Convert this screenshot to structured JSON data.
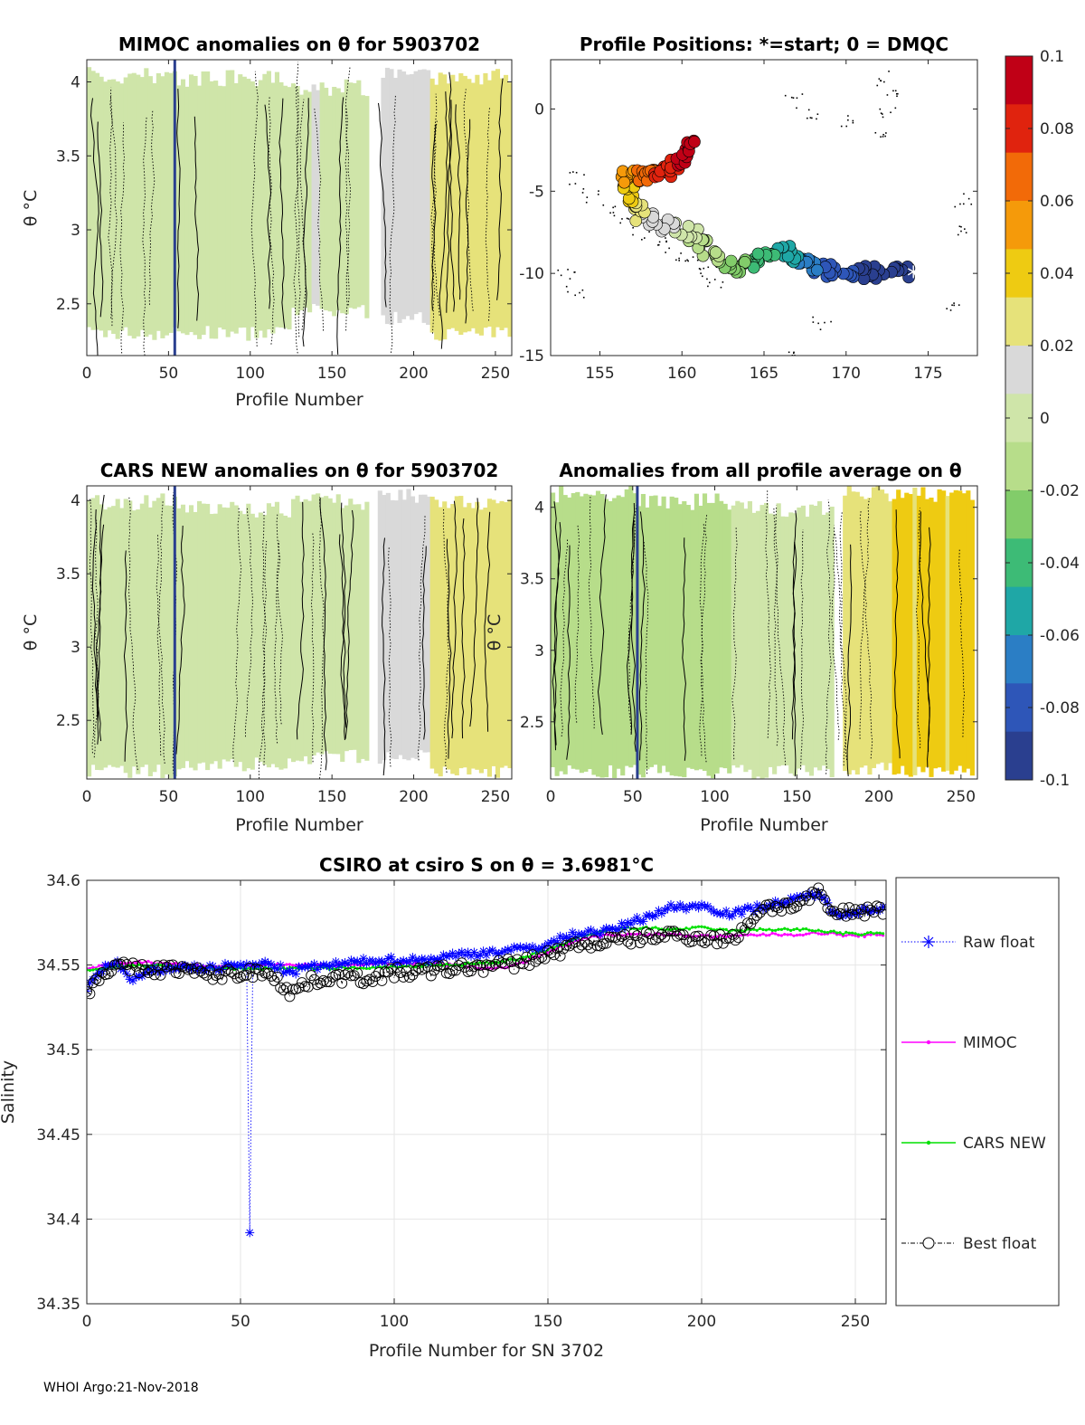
{
  "footer": "WHOI Argo:21-Nov-2018",
  "colorbar": {
    "ticks": [
      "0.1",
      "0.08",
      "0.06",
      "0.04",
      "0.02",
      "0",
      "-0.02",
      "-0.04",
      "-0.06",
      "-0.08",
      "-0.1"
    ],
    "colors": [
      "#c00016",
      "#e0230e",
      "#f26a08",
      "#f59a0a",
      "#eecb12",
      "#e6e27a",
      "#d9d9d9",
      "#cfe5a9",
      "#b7dd8a",
      "#82cc6a",
      "#3dbb76",
      "#1fa7a6",
      "#2b7ec5",
      "#2e56b8",
      "#2a3f8f"
    ]
  },
  "chart_data": [
    {
      "id": "mimoc-anom",
      "type": "heatmap",
      "title": "MIMOC anomalies on θ  for 5903702",
      "xlabel": "Profile Number",
      "ylabel": "θ °C",
      "xlim": [
        0,
        260
      ],
      "ylim": [
        2.15,
        4.15
      ],
      "xticks": [
        "0",
        "50",
        "100",
        "150",
        "200",
        "250"
      ],
      "yticks": [
        "4",
        "3.5",
        "3",
        "2.5"
      ],
      "colorbar_range": [
        -0.1,
        0.1
      ],
      "blocks": [
        {
          "x0": 0,
          "x1": 55,
          "ymin": 2.25,
          "ymax": 4.1,
          "anomaly": 0.0
        },
        {
          "x0": 55,
          "x1": 125,
          "ymin": 2.25,
          "ymax": 4.08,
          "anomaly": 0.002
        },
        {
          "x0": 125,
          "x1": 172,
          "ymin": 2.4,
          "ymax": 4.02,
          "anomaly": 0.005
        },
        {
          "x0": 180,
          "x1": 210,
          "ymin": 2.35,
          "ymax": 4.1,
          "anomaly": 0.018
        },
        {
          "x0": 210,
          "x1": 258,
          "ymin": 2.25,
          "ymax": 4.1,
          "anomaly": 0.025
        }
      ]
    },
    {
      "id": "profile-positions",
      "type": "scatter",
      "title": "Profile Positions: *=start; 0 = DMQC",
      "xlim": [
        152,
        178
      ],
      "ylim": [
        -15,
        3
      ],
      "xticks": [
        "155",
        "160",
        "165",
        "170",
        "175"
      ],
      "yticks": [
        "0",
        "-5",
        "-10",
        "-15"
      ],
      "start": {
        "lon": 174.1,
        "lat": -9.9
      },
      "track_segments": [
        {
          "lon0": 174.0,
          "lat0": -10.0,
          "lon1": 169.0,
          "lat1": -9.9,
          "anomaly_start": -0.1,
          "anomaly_end": -0.08,
          "n": 30
        },
        {
          "lon0": 169.0,
          "lat0": -9.9,
          "lon1": 166.0,
          "lat1": -8.6,
          "anomaly_start": -0.08,
          "anomaly_end": -0.05,
          "n": 30
        },
        {
          "lon0": 166.0,
          "lat0": -8.6,
          "lon1": 163.0,
          "lat1": -9.8,
          "anomaly_start": -0.05,
          "anomaly_end": -0.025,
          "n": 25
        },
        {
          "lon0": 163.0,
          "lat0": -9.8,
          "lon1": 160.5,
          "lat1": -7.5,
          "anomaly_start": -0.025,
          "anomaly_end": -0.005,
          "n": 20
        },
        {
          "lon0": 160.5,
          "lat0": -7.5,
          "lon1": 157.5,
          "lat1": -6.5,
          "anomaly_start": 0.0,
          "anomaly_end": 0.02,
          "n": 20
        },
        {
          "lon0": 157.5,
          "lat0": -6.5,
          "lon1": 156.5,
          "lat1": -4.2,
          "anomaly_start": 0.02,
          "anomaly_end": 0.05,
          "n": 20
        },
        {
          "lon0": 156.5,
          "lat0": -4.2,
          "lon1": 159.0,
          "lat1": -3.8,
          "anomaly_start": 0.05,
          "anomaly_end": 0.08,
          "n": 30
        },
        {
          "lon0": 159.0,
          "lat0": -3.8,
          "lon1": 161.0,
          "lat1": -2.0,
          "anomaly_start": 0.08,
          "anomaly_end": 0.1,
          "n": 25
        }
      ]
    },
    {
      "id": "cars-anom",
      "type": "heatmap",
      "title": "CARS NEW anomalies on θ for 5903702",
      "xlabel": "Profile Number",
      "ylabel": "θ °C",
      "xlim": [
        0,
        260
      ],
      "ylim": [
        2.1,
        4.1
      ],
      "xticks": [
        "0",
        "50",
        "100",
        "150",
        "200",
        "250"
      ],
      "yticks": [
        "4",
        "3.5",
        "3",
        "2.5"
      ],
      "blocks": [
        {
          "x0": 0,
          "x1": 55,
          "ymin": 2.1,
          "ymax": 4.05,
          "anomaly": 0.0
        },
        {
          "x0": 55,
          "x1": 125,
          "ymin": 2.15,
          "ymax": 4.0,
          "anomaly": 0.0
        },
        {
          "x0": 125,
          "x1": 172,
          "ymin": 2.2,
          "ymax": 4.05,
          "anomaly": 0.003
        },
        {
          "x0": 178,
          "x1": 210,
          "ymin": 2.2,
          "ymax": 4.1,
          "anomaly": 0.015
        },
        {
          "x0": 210,
          "x1": 258,
          "ymin": 2.1,
          "ymax": 4.05,
          "anomaly": 0.022
        }
      ]
    },
    {
      "id": "avg-anom",
      "type": "heatmap",
      "title": "Anomalies from all profile average on θ",
      "xlabel": "Profile Number",
      "ylabel": "θ °C",
      "xlim": [
        0,
        260
      ],
      "ylim": [
        2.1,
        4.15
      ],
      "xticks": [
        "0",
        "50",
        "100",
        "150",
        "200",
        "250"
      ],
      "yticks": [
        "4",
        "3.5",
        "3",
        "2.5"
      ],
      "blocks": [
        {
          "x0": 0,
          "x1": 50,
          "ymin": 2.1,
          "ymax": 4.15,
          "anomaly": -0.015
        },
        {
          "x0": 50,
          "x1": 110,
          "ymin": 2.1,
          "ymax": 4.1,
          "anomaly": -0.01
        },
        {
          "x0": 110,
          "x1": 172,
          "ymin": 2.1,
          "ymax": 4.05,
          "anomaly": -0.002
        },
        {
          "x0": 178,
          "x1": 208,
          "ymin": 2.12,
          "ymax": 4.15,
          "anomaly": 0.025
        },
        {
          "x0": 208,
          "x1": 258,
          "ymin": 2.1,
          "ymax": 4.15,
          "anomaly": 0.035
        }
      ]
    },
    {
      "id": "salinity",
      "type": "line",
      "title": "CSIRO at csiro S on θ = 3.6981°C",
      "xlabel": "Profile Number for SN 3702",
      "ylabel": "Salinity",
      "xlim": [
        0,
        260
      ],
      "ylim": [
        34.35,
        34.6
      ],
      "xticks": [
        0,
        50,
        100,
        150,
        200,
        250
      ],
      "yticks": [
        34.35,
        34.4,
        34.45,
        34.5,
        34.55,
        34.6
      ],
      "ytick_labels": [
        "34.35",
        "34.4",
        "34.45",
        "34.5",
        "34.55",
        "34.6"
      ],
      "series": [
        {
          "name": "Raw float",
          "color": "#0000ff",
          "marker": "*",
          "knots": [
            [
              0,
              34.536
            ],
            [
              5,
              34.548
            ],
            [
              10,
              34.551
            ],
            [
              15,
              34.54
            ],
            [
              20,
              34.546
            ],
            [
              30,
              34.549
            ],
            [
              40,
              34.548
            ],
            [
              50,
              34.55
            ],
            [
              53,
              34.55
            ],
            [
              60,
              34.551
            ],
            [
              66,
              34.545
            ],
            [
              70,
              34.548
            ],
            [
              80,
              34.55
            ],
            [
              95,
              34.553
            ],
            [
              110,
              34.553
            ],
            [
              120,
              34.556
            ],
            [
              140,
              34.559
            ],
            [
              150,
              34.562
            ],
            [
              155,
              34.566
            ],
            [
              160,
              34.569
            ],
            [
              170,
              34.57
            ],
            [
              180,
              34.577
            ],
            [
              190,
              34.584
            ],
            [
              200,
              34.585
            ],
            [
              210,
              34.58
            ],
            [
              220,
              34.585
            ],
            [
              230,
              34.588
            ],
            [
              238,
              34.593
            ],
            [
              243,
              34.58
            ],
            [
              250,
              34.582
            ],
            [
              259,
              34.583
            ]
          ],
          "outliers": [
            [
              53,
              34.392
            ]
          ]
        },
        {
          "name": "MIMOC",
          "color": "#ff00ff",
          "marker": ".",
          "knots": [
            [
              0,
              34.548
            ],
            [
              10,
              34.551
            ],
            [
              20,
              34.552
            ],
            [
              40,
              34.549
            ],
            [
              60,
              34.55
            ],
            [
              80,
              34.55
            ],
            [
              100,
              34.551
            ],
            [
              120,
              34.55
            ],
            [
              132,
              34.548
            ],
            [
              140,
              34.55
            ],
            [
              150,
              34.558
            ],
            [
              160,
              34.565
            ],
            [
              170,
              34.568
            ],
            [
              180,
              34.568
            ],
            [
              190,
              34.568
            ],
            [
              200,
              34.567
            ],
            [
              210,
              34.567
            ],
            [
              220,
              34.568
            ],
            [
              230,
              34.568
            ],
            [
              240,
              34.569
            ],
            [
              250,
              34.567
            ],
            [
              259,
              34.568
            ]
          ]
        },
        {
          "name": "CARS NEW",
          "color": "#00e000",
          "marker": ".",
          "knots": [
            [
              0,
              34.547
            ],
            [
              10,
              34.549
            ],
            [
              20,
              34.55
            ],
            [
              40,
              34.548
            ],
            [
              60,
              34.548
            ],
            [
              80,
              34.548
            ],
            [
              100,
              34.549
            ],
            [
              120,
              34.55
            ],
            [
              140,
              34.553
            ],
            [
              150,
              34.559
            ],
            [
              160,
              34.566
            ],
            [
              170,
              34.571
            ],
            [
              180,
              34.572
            ],
            [
              190,
              34.571
            ],
            [
              200,
              34.572
            ],
            [
              210,
              34.57
            ],
            [
              220,
              34.571
            ],
            [
              230,
              34.571
            ],
            [
              240,
              34.57
            ],
            [
              250,
              34.568
            ],
            [
              259,
              34.569
            ]
          ]
        },
        {
          "name": "Best float",
          "color": "#000000",
          "marker": "o",
          "knots": [
            [
              0,
              34.534
            ],
            [
              5,
              34.546
            ],
            [
              10,
              34.549
            ],
            [
              20,
              34.547
            ],
            [
              30,
              34.548
            ],
            [
              40,
              34.544
            ],
            [
              50,
              34.545
            ],
            [
              60,
              34.546
            ],
            [
              66,
              34.533
            ],
            [
              72,
              34.54
            ],
            [
              80,
              34.543
            ],
            [
              90,
              34.542
            ],
            [
              100,
              34.545
            ],
            [
              110,
              34.546
            ],
            [
              120,
              34.548
            ],
            [
              130,
              34.549
            ],
            [
              140,
              34.551
            ],
            [
              150,
              34.556
            ],
            [
              160,
              34.562
            ],
            [
              170,
              34.564
            ],
            [
              180,
              34.566
            ],
            [
              190,
              34.568
            ],
            [
              200,
              34.566
            ],
            [
              210,
              34.565
            ],
            [
              220,
              34.584
            ],
            [
              230,
              34.585
            ],
            [
              238,
              34.592
            ],
            [
              243,
              34.58
            ],
            [
              250,
              34.582
            ],
            [
              259,
              34.583
            ]
          ]
        }
      ]
    }
  ]
}
